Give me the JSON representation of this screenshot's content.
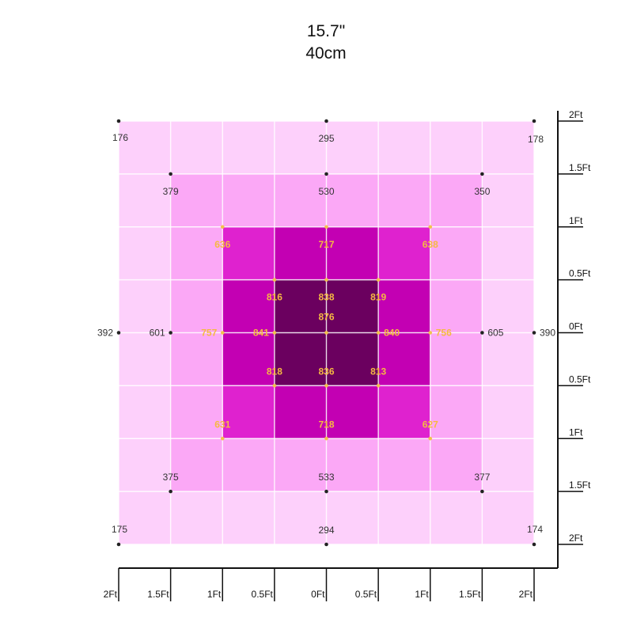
{
  "header": {
    "inches": "15.7\"",
    "cm": "40cm"
  },
  "chart_data": {
    "type": "heatmap",
    "title": "15.7\" 40cm",
    "grid_cols": 8,
    "grid_rows": 8,
    "cell_levels": [
      [
        0,
        0,
        0,
        0,
        0,
        0,
        0,
        0
      ],
      [
        0,
        1,
        1,
        1,
        1,
        1,
        1,
        0
      ],
      [
        0,
        1,
        2,
        3,
        3,
        2,
        1,
        0
      ],
      [
        0,
        1,
        3,
        4,
        4,
        3,
        1,
        0
      ],
      [
        0,
        1,
        3,
        4,
        4,
        3,
        1,
        0
      ],
      [
        0,
        1,
        2,
        3,
        3,
        2,
        1,
        0
      ],
      [
        0,
        1,
        1,
        1,
        1,
        1,
        1,
        0
      ],
      [
        0,
        0,
        0,
        0,
        0,
        0,
        0,
        0
      ]
    ],
    "level_colors": [
      "#fdd0fb",
      "#fba8f6",
      "#df22cf",
      "#c300b3",
      "#6b005f"
    ],
    "points": [
      {
        "x": -2,
        "y": 2,
        "value": "176",
        "dot": "#222222",
        "color": "#333333",
        "anchor": "bl"
      },
      {
        "x": 0,
        "y": 2,
        "value": "295",
        "dot": "#222222",
        "color": "#333333",
        "anchor": "below"
      },
      {
        "x": 2,
        "y": 2,
        "value": "178",
        "dot": "#222222",
        "color": "#333333",
        "anchor": "br"
      },
      {
        "x": -1.5,
        "y": 1.5,
        "value": "379",
        "dot": "#222222",
        "color": "#333333",
        "anchor": "below"
      },
      {
        "x": 0,
        "y": 1.5,
        "value": "530",
        "dot": "#222222",
        "color": "#333333",
        "anchor": "below"
      },
      {
        "x": 1.5,
        "y": 1.5,
        "value": "350",
        "dot": "#222222",
        "color": "#333333",
        "anchor": "below"
      },
      {
        "x": -1,
        "y": 1,
        "value": "636",
        "dot": "#f3c24b",
        "color": "#f5b942",
        "anchor": "below"
      },
      {
        "x": 0,
        "y": 1,
        "value": "717",
        "dot": "#f3c24b",
        "color": "#f5b942",
        "anchor": "below"
      },
      {
        "x": 1,
        "y": 1,
        "value": "638",
        "dot": "#f3c24b",
        "color": "#f5b942",
        "anchor": "below"
      },
      {
        "x": -0.5,
        "y": 0.5,
        "value": "816",
        "dot": "#f3c24b",
        "color": "#f5b942",
        "anchor": "below"
      },
      {
        "x": 0,
        "y": 0.5,
        "value": "838",
        "dot": "#f3c24b",
        "color": "#f5b942",
        "anchor": "below"
      },
      {
        "x": 0.5,
        "y": 0.5,
        "value": "819",
        "dot": "#f3c24b",
        "color": "#f5b942",
        "anchor": "below"
      },
      {
        "x": 0,
        "y": 0.15,
        "value": "876",
        "dot": "none",
        "color": "#f5b942",
        "anchor": "center"
      },
      {
        "x": -2,
        "y": 0,
        "value": "392",
        "dot": "#222222",
        "color": "#333333",
        "anchor": "right"
      },
      {
        "x": -1.5,
        "y": 0,
        "value": "601",
        "dot": "#222222",
        "color": "#333333",
        "anchor": "right"
      },
      {
        "x": -1,
        "y": 0,
        "value": "757",
        "dot": "#f3c24b",
        "color": "#f5b942",
        "anchor": "right"
      },
      {
        "x": -0.5,
        "y": 0,
        "value": "841",
        "dot": "#f3c24b",
        "color": "#f5b942",
        "anchor": "right"
      },
      {
        "x": 0,
        "y": 0,
        "value": "",
        "dot": "#f3c24b",
        "color": "#f5b942",
        "anchor": "right"
      },
      {
        "x": 0.5,
        "y": 0,
        "value": "840",
        "dot": "#f3c24b",
        "color": "#f5b942",
        "anchor": "left"
      },
      {
        "x": 1,
        "y": 0,
        "value": "756",
        "dot": "#f3c24b",
        "color": "#f5b942",
        "anchor": "left"
      },
      {
        "x": 1.5,
        "y": 0,
        "value": "605",
        "dot": "#222222",
        "color": "#333333",
        "anchor": "left"
      },
      {
        "x": 2,
        "y": 0,
        "value": "390",
        "dot": "#222222",
        "color": "#333333",
        "anchor": "left"
      },
      {
        "x": -0.5,
        "y": -0.5,
        "value": "818",
        "dot": "#f3c24b",
        "color": "#f5b942",
        "anchor": "above"
      },
      {
        "x": 0,
        "y": -0.5,
        "value": "836",
        "dot": "#f3c24b",
        "color": "#f5b942",
        "anchor": "above"
      },
      {
        "x": 0.5,
        "y": -0.5,
        "value": "813",
        "dot": "#f3c24b",
        "color": "#f5b942",
        "anchor": "above"
      },
      {
        "x": -1,
        "y": -1,
        "value": "631",
        "dot": "#f3c24b",
        "color": "#f5b942",
        "anchor": "above"
      },
      {
        "x": 0,
        "y": -1,
        "value": "718",
        "dot": "#f3c24b",
        "color": "#f5b942",
        "anchor": "above"
      },
      {
        "x": 1,
        "y": -1,
        "value": "627",
        "dot": "#f3c24b",
        "color": "#f5b942",
        "anchor": "above"
      },
      {
        "x": -1.5,
        "y": -1.5,
        "value": "375",
        "dot": "#222222",
        "color": "#333333",
        "anchor": "above"
      },
      {
        "x": 0,
        "y": -1.5,
        "value": "533",
        "dot": "#222222",
        "color": "#333333",
        "anchor": "above"
      },
      {
        "x": 1.5,
        "y": -1.5,
        "value": "377",
        "dot": "#222222",
        "color": "#333333",
        "anchor": "above"
      },
      {
        "x": -2,
        "y": -2,
        "value": "175",
        "dot": "#222222",
        "color": "#333333",
        "anchor": "tl"
      },
      {
        "x": 0,
        "y": -2,
        "value": "294",
        "dot": "#222222",
        "color": "#333333",
        "anchor": "above"
      },
      {
        "x": 2,
        "y": -2,
        "value": "174",
        "dot": "#222222",
        "color": "#333333",
        "anchor": "tr"
      }
    ],
    "x_axis": {
      "range": [
        -2,
        2
      ],
      "ticks": [
        -2,
        -1.5,
        -1,
        -0.5,
        0,
        0.5,
        1,
        1.5,
        2
      ],
      "tick_labels": [
        "2Ft",
        "1.5Ft",
        "1Ft",
        "0.5Ft",
        "0Ft",
        "0.5Ft",
        "1Ft",
        "1.5Ft",
        "2Ft"
      ]
    },
    "y_axis": {
      "range": [
        -2,
        2
      ],
      "ticks": [
        2,
        1.5,
        1,
        0.5,
        0,
        -0.5,
        -1,
        -1.5,
        -2
      ],
      "tick_labels": [
        "2Ft",
        "1.5Ft",
        "1Ft",
        "0.5Ft",
        "0Ft",
        "0.5Ft",
        "1Ft",
        "1.5Ft",
        "2Ft"
      ]
    },
    "grid": true,
    "legend": "none"
  }
}
